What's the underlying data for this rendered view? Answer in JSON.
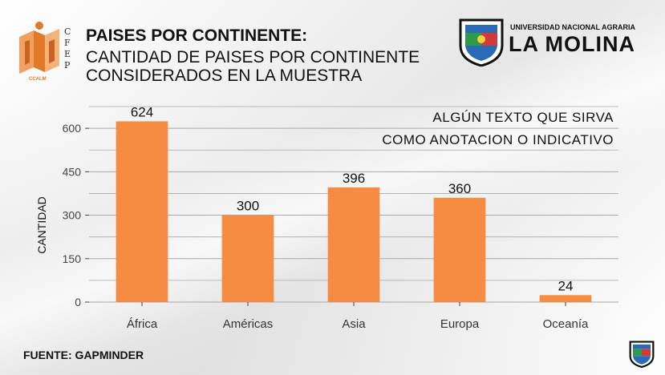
{
  "header": {
    "title": "PAISES POR CONTINENTE:",
    "subtitle": "CANTIDAD DE PAISES POR CONTINENTE CONSIDERADOS EN LA MUESTRA"
  },
  "logo_left": {
    "letters": [
      "C",
      "F",
      "E",
      "P"
    ],
    "caption": "CCALM"
  },
  "university": {
    "name_small": "UNIVERSIDAD NACIONAL AGRARIA",
    "name_big": "LA MOLINA"
  },
  "source": "FUENTE: GAPMINDER",
  "annotation": {
    "line1": "ALGÚN TEXTO QUE SIRVA",
    "line2": "COMO ANOTACION O INDICATIVO"
  },
  "colors": {
    "bar": "#f68b42",
    "grid": "#a8a8a8",
    "accent_logo": "#e07a28"
  },
  "chart_data": {
    "type": "bar",
    "categories": [
      "África",
      "Américas",
      "Asia",
      "Europa",
      "Oceanía"
    ],
    "values": [
      624,
      300,
      396,
      360,
      24
    ],
    "data_labels": [
      "624",
      "300",
      "396",
      "360",
      "24"
    ],
    "title": "",
    "xlabel": "",
    "ylabel": "CANTIDAD",
    "ylim": [
      0,
      675
    ],
    "yticks": [
      0,
      150,
      300,
      450,
      600
    ],
    "grid": true,
    "legend": "none"
  }
}
